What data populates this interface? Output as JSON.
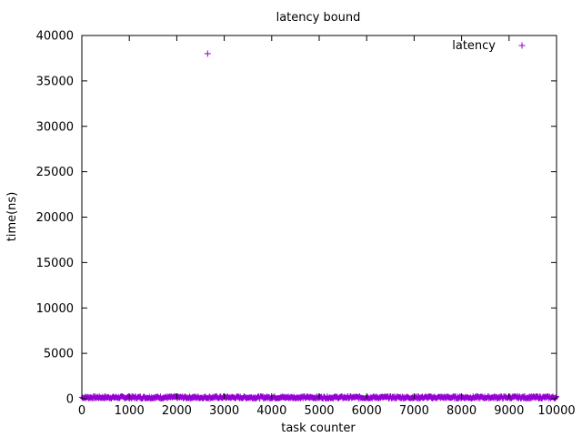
{
  "chart_data": {
    "type": "scatter",
    "title": "latency bound",
    "xlabel": "task counter",
    "ylabel": "time(ns)",
    "xlim": [
      0,
      10000
    ],
    "ylim": [
      0,
      40000
    ],
    "x_ticks": [
      "0",
      "1000",
      "2000",
      "3000",
      "4000",
      "5000",
      "6000",
      "7000",
      "8000",
      "9000",
      "10000"
    ],
    "y_ticks": [
      "0",
      "5000",
      "10000",
      "15000",
      "20000",
      "25000",
      "30000",
      "35000",
      "40000"
    ],
    "grid": false,
    "legend_position": "top-right",
    "marker": "+",
    "color": "#9400d3",
    "series": [
      {
        "name": "latency",
        "baseline_band": {
          "x_range": [
            0,
            10000
          ],
          "y_range": [
            0,
            300
          ],
          "count": 10000
        },
        "outliers": [
          {
            "x": 2650,
            "y": 38000
          }
        ]
      }
    ]
  }
}
